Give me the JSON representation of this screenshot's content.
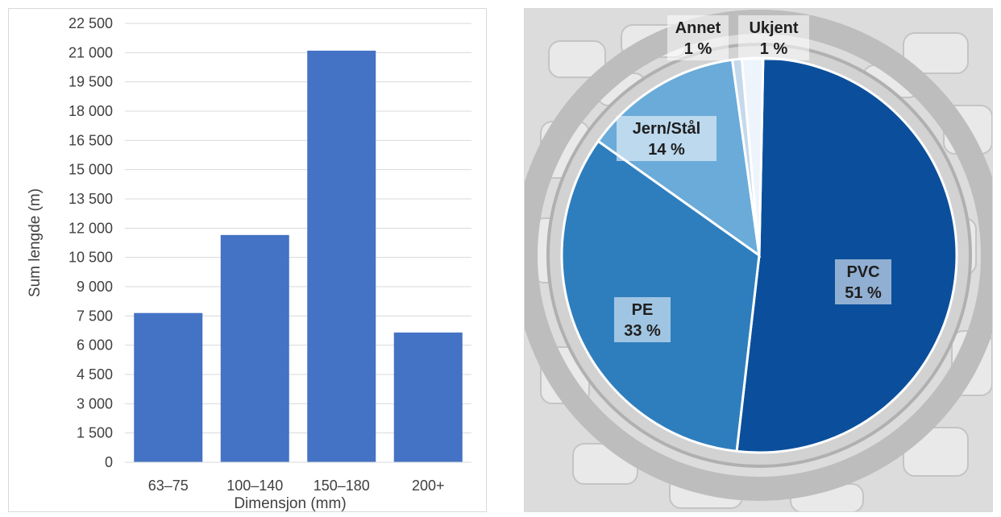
{
  "chart_data": [
    {
      "type": "bar",
      "categories": [
        "63–75",
        "100–140",
        "150–180",
        "200+"
      ],
      "values": [
        7650,
        11650,
        21100,
        6650
      ],
      "xlabel": "Dimensjon (mm)",
      "ylabel": "Sum lengde (m)",
      "ylim": [
        0,
        22500
      ],
      "yticks": [
        "0",
        "1 500",
        "3 000",
        "4 500",
        "6 000",
        "7 500",
        "9 000",
        "10 500",
        "12 000",
        "13 500",
        "15 000",
        "16 500",
        "18 000",
        "19 500",
        "21 000",
        "22 500"
      ],
      "grid": true,
      "bar_color": "#4472c4"
    },
    {
      "type": "pie",
      "slices": [
        {
          "name": "PVC",
          "value": 51,
          "label": "51 %",
          "color": "#0b4f9c"
        },
        {
          "name": "PE",
          "value": 33,
          "label": "33 %",
          "color": "#2e7ebe"
        },
        {
          "name": "Jern/Stål",
          "value": 14,
          "label": "14 %",
          "color": "#6aabd9"
        },
        {
          "name": "Annet",
          "value": 1,
          "label": "1 %",
          "color": "#c5d9ec"
        },
        {
          "name": "Ukjent",
          "value": 1,
          "label": "1 %",
          "color": "#eef4fb"
        }
      ],
      "background": "manhole cover photo (grey)"
    }
  ]
}
